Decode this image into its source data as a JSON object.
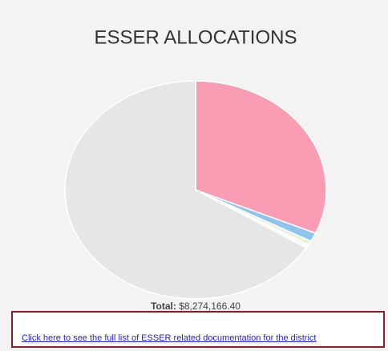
{
  "chart_data": {
    "type": "pie",
    "title": "ESSER ALLOCATIONS",
    "values": [
      31.5,
      1.3,
      0.6,
      0.5,
      66.1
    ],
    "colors": [
      "#f89db3",
      "#8cc6ee",
      "#f1eedd",
      "#fbfbfb",
      "#e6e6e6"
    ]
  },
  "total": {
    "label": "Total:",
    "value": "$8,274,166.40"
  },
  "link": {
    "text": "Click here to see the full list of ESSER related documentation for the district"
  }
}
